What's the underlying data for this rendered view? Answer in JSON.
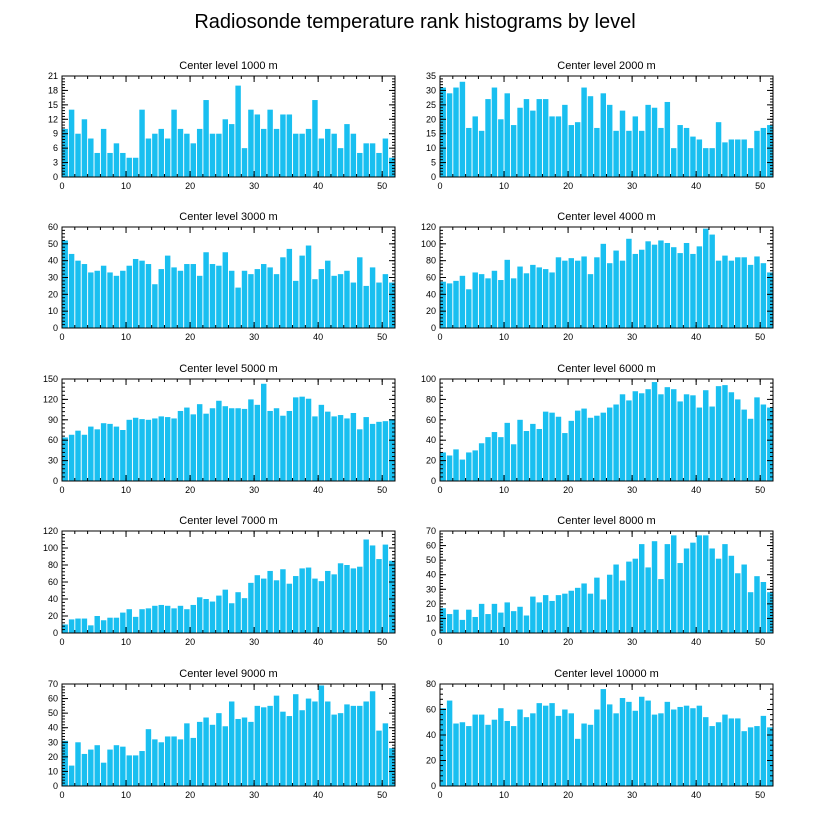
{
  "figure_title": "Radiosonde temperature rank histograms by level",
  "colors": {
    "bar": "#19BFF0",
    "axis": "#000000",
    "background": "#ffffff"
  },
  "chart_data": [
    {
      "type": "bar",
      "title": "Center level 1000 m",
      "xlim": [
        0,
        52
      ],
      "ylim": [
        0,
        21
      ],
      "xticks": [
        0,
        10,
        20,
        30,
        40,
        50
      ],
      "yticks": [
        0,
        3,
        6,
        9,
        12,
        15,
        18,
        21
      ],
      "values": [
        10,
        14,
        9,
        12,
        8,
        5,
        10,
        5,
        7,
        5,
        4,
        4,
        14,
        8,
        9,
        10,
        8,
        14,
        10,
        9,
        7,
        10,
        16,
        9,
        9,
        12,
        11,
        19,
        6,
        14,
        13,
        10,
        14,
        10,
        13,
        13,
        9,
        9,
        10,
        16,
        8,
        10,
        9,
        6,
        11,
        9,
        5,
        7,
        7,
        5,
        8,
        4
      ]
    },
    {
      "type": "bar",
      "title": "Center level 2000 m",
      "xlim": [
        0,
        52
      ],
      "ylim": [
        0,
        35
      ],
      "xticks": [
        0,
        10,
        20,
        30,
        40,
        50
      ],
      "yticks": [
        0,
        5,
        10,
        15,
        20,
        25,
        30,
        35
      ],
      "values": [
        31,
        29,
        31,
        33,
        17,
        21,
        16,
        27,
        31,
        20,
        29,
        18,
        24,
        27,
        23,
        27,
        27,
        21,
        21,
        25,
        18,
        19,
        31,
        28,
        17,
        29,
        25,
        16,
        23,
        16,
        21,
        16,
        25,
        24,
        17,
        26,
        10,
        18,
        17,
        14,
        13,
        10,
        10,
        19,
        12,
        13,
        13,
        13,
        10,
        16,
        17,
        18
      ]
    },
    {
      "type": "bar",
      "title": "Center level 3000 m",
      "xlim": [
        0,
        52
      ],
      "ylim": [
        0,
        60
      ],
      "xticks": [
        0,
        10,
        20,
        30,
        40,
        50
      ],
      "yticks": [
        0,
        10,
        20,
        30,
        40,
        50,
        60
      ],
      "values": [
        52,
        44,
        40,
        38,
        33,
        34,
        37,
        33,
        31,
        34,
        37,
        41,
        40,
        38,
        26,
        35,
        43,
        36,
        34,
        38,
        38,
        31,
        45,
        38,
        37,
        45,
        34,
        24,
        34,
        32,
        35,
        38,
        36,
        32,
        42,
        47,
        28,
        43,
        49,
        29,
        35,
        40,
        31,
        32,
        34,
        27,
        42,
        25,
        36,
        27,
        32,
        27
      ]
    },
    {
      "type": "bar",
      "title": "Center level 4000 m",
      "xlim": [
        0,
        52
      ],
      "ylim": [
        0,
        120
      ],
      "xticks": [
        0,
        10,
        20,
        30,
        40,
        50
      ],
      "yticks": [
        0,
        20,
        40,
        60,
        80,
        100,
        120
      ],
      "values": [
        55,
        53,
        56,
        62,
        46,
        66,
        64,
        59,
        68,
        57,
        81,
        59,
        73,
        65,
        75,
        72,
        70,
        66,
        84,
        80,
        83,
        80,
        85,
        64,
        84,
        100,
        77,
        92,
        80,
        106,
        88,
        93,
        103,
        99,
        104,
        101,
        96,
        89,
        101,
        88,
        97,
        118,
        111,
        80,
        86,
        80,
        84,
        84,
        75,
        85,
        77,
        66
      ]
    },
    {
      "type": "bar",
      "title": "Center level 5000 m",
      "xlim": [
        0,
        52
      ],
      "ylim": [
        0,
        150
      ],
      "xticks": [
        0,
        10,
        20,
        30,
        40,
        50
      ],
      "yticks": [
        0,
        30,
        60,
        90,
        120,
        150
      ],
      "values": [
        64,
        68,
        74,
        68,
        80,
        76,
        85,
        84,
        80,
        75,
        90,
        93,
        91,
        90,
        92,
        95,
        94,
        92,
        103,
        108,
        98,
        113,
        99,
        107,
        118,
        110,
        107,
        107,
        106,
        120,
        112,
        143,
        103,
        107,
        96,
        103,
        123,
        124,
        121,
        95,
        112,
        102,
        95,
        97,
        92,
        100,
        76,
        94,
        84,
        87,
        88,
        91
      ]
    },
    {
      "type": "bar",
      "title": "Center level 6000 m",
      "xlim": [
        0,
        52
      ],
      "ylim": [
        0,
        100
      ],
      "xticks": [
        0,
        10,
        20,
        30,
        40,
        50
      ],
      "yticks": [
        0,
        20,
        40,
        60,
        80,
        100
      ],
      "values": [
        28,
        25,
        31,
        21,
        28,
        30,
        37,
        43,
        48,
        43,
        57,
        36,
        60,
        49,
        56,
        51,
        68,
        67,
        63,
        47,
        59,
        69,
        71,
        62,
        64,
        67,
        72,
        75,
        85,
        79,
        88,
        86,
        90,
        97,
        85,
        92,
        90,
        78,
        85,
        84,
        72,
        89,
        73,
        93,
        94,
        87,
        80,
        70,
        61,
        82,
        75,
        72
      ]
    },
    {
      "type": "bar",
      "title": "Center level 7000 m",
      "xlim": [
        0,
        52
      ],
      "ylim": [
        0,
        120
      ],
      "xticks": [
        0,
        10,
        20,
        30,
        40,
        50
      ],
      "yticks": [
        0,
        20,
        40,
        60,
        80,
        100,
        120
      ],
      "values": [
        10,
        16,
        17,
        17,
        9,
        20,
        15,
        18,
        18,
        24,
        28,
        19,
        28,
        29,
        32,
        33,
        32,
        29,
        32,
        28,
        33,
        42,
        40,
        37,
        44,
        51,
        35,
        48,
        41,
        59,
        68,
        64,
        73,
        62,
        75,
        58,
        67,
        76,
        77,
        64,
        61,
        73,
        69,
        82,
        80,
        76,
        78,
        110,
        103,
        87,
        104,
        85
      ]
    },
    {
      "type": "bar",
      "title": "Center level 8000 m",
      "xlim": [
        0,
        52
      ],
      "ylim": [
        0,
        70
      ],
      "xticks": [
        0,
        10,
        20,
        30,
        40,
        50
      ],
      "yticks": [
        0,
        10,
        20,
        30,
        40,
        50,
        60,
        70
      ],
      "values": [
        17,
        13,
        16,
        9,
        16,
        11,
        20,
        13,
        20,
        14,
        21,
        15,
        18,
        12,
        25,
        21,
        26,
        22,
        26,
        27,
        29,
        31,
        34,
        27,
        38,
        23,
        40,
        47,
        36,
        49,
        51,
        61,
        45,
        63,
        37,
        61,
        67,
        48,
        58,
        62,
        67,
        67,
        58,
        51,
        61,
        53,
        41,
        47,
        28,
        39,
        35,
        28
      ]
    },
    {
      "type": "bar",
      "title": "Center level 9000 m",
      "xlim": [
        0,
        52
      ],
      "ylim": [
        0,
        70
      ],
      "xticks": [
        0,
        10,
        20,
        30,
        40,
        50
      ],
      "yticks": [
        0,
        10,
        20,
        30,
        40,
        50,
        60,
        70
      ],
      "values": [
        31,
        14,
        30,
        22,
        25,
        28,
        16,
        25,
        28,
        27,
        21,
        21,
        24,
        39,
        32,
        30,
        34,
        34,
        32,
        43,
        33,
        44,
        47,
        42,
        50,
        41,
        58,
        46,
        47,
        44,
        55,
        54,
        55,
        62,
        51,
        48,
        63,
        52,
        60,
        58,
        69,
        58,
        49,
        50,
        56,
        55,
        55,
        58,
        65,
        38,
        43,
        26
      ]
    },
    {
      "type": "bar",
      "title": "Center level 10000 m",
      "xlim": [
        0,
        52
      ],
      "ylim": [
        0,
        80
      ],
      "xticks": [
        0,
        10,
        20,
        30,
        40,
        50
      ],
      "yticks": [
        0,
        20,
        40,
        60,
        80
      ],
      "values": [
        61,
        67,
        49,
        50,
        47,
        56,
        56,
        48,
        52,
        61,
        51,
        47,
        60,
        54,
        57,
        65,
        63,
        65,
        55,
        60,
        57,
        37,
        49,
        48,
        60,
        76,
        64,
        57,
        69,
        66,
        59,
        70,
        67,
        56,
        57,
        66,
        60,
        62,
        63,
        61,
        63,
        54,
        47,
        50,
        56,
        53,
        53,
        43,
        46,
        47,
        55,
        46
      ]
    }
  ]
}
